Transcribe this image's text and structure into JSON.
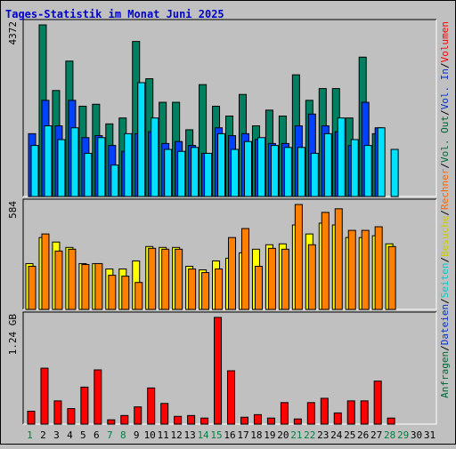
{
  "chart_data": {
    "type": "bar",
    "title": "Tages-Statistik im Monat Juni 2025",
    "categories": [
      "1",
      "2",
      "3",
      "4",
      "5",
      "6",
      "7",
      "8",
      "9",
      "10",
      "11",
      "12",
      "13",
      "14",
      "15",
      "16",
      "17",
      "18",
      "19",
      "20",
      "21",
      "22",
      "23",
      "24",
      "25",
      "26",
      "27",
      "28",
      "29",
      "30",
      "31"
    ],
    "weekend_days": [
      "1",
      "7",
      "8",
      "14",
      "15",
      "21",
      "22",
      "28",
      "29"
    ],
    "right_axis_labels": [
      {
        "text": "Anfragen",
        "color": "#006633"
      },
      {
        "text": "/",
        "color": "#000000"
      },
      {
        "text": "Dateien",
        "color": "#0033cc"
      },
      {
        "text": "/",
        "color": "#000000"
      },
      {
        "text": "Seiten",
        "color": "#00cccc"
      },
      {
        "text": "/",
        "color": "#000000"
      },
      {
        "text": "Besuche",
        "color": "#cccc00"
      },
      {
        "text": "/",
        "color": "#000000"
      },
      {
        "text": "Rechner",
        "color": "#ff6600"
      },
      {
        "text": "/",
        "color": "#000000"
      },
      {
        "text": "Vol. Out",
        "color": "#006633"
      },
      {
        "text": "/",
        "color": "#000000"
      },
      {
        "text": "Vol. In",
        "color": "#0033cc"
      },
      {
        "text": "/",
        "color": "#000000"
      },
      {
        "text": "Volumen",
        "color": "#ff0000"
      }
    ],
    "panels": [
      {
        "name": "hits",
        "ymax_label": "4372",
        "ymax": 4372,
        "series": [
          {
            "name": "Anfragen",
            "color": "#008060",
            "values": [
              null,
              4372,
              2700,
              3450,
              2300,
              2350,
              1850,
              2000,
              3950,
              3000,
              2400,
              2400,
              1700,
              2850,
              2300,
              2050,
              2600,
              1800,
              2200,
              2050,
              3100,
              2450,
              2750,
              2750,
              2000,
              3550,
              1600,
              null,
              null,
              null,
              null
            ]
          },
          {
            "name": "Dateien",
            "color": "#0040ff",
            "values": [
              1600,
              2450,
              1800,
              2450,
              1500,
              1550,
              1300,
              1150,
              1600,
              1650,
              1350,
              1400,
              1300,
              1100,
              1750,
              1550,
              1600,
              1450,
              1350,
              1350,
              1800,
              2100,
              1800,
              1650,
              1300,
              2400,
              1750,
              null,
              null,
              null,
              null
            ]
          },
          {
            "name": "Seiten",
            "color": "#00e0ff",
            "values": [
              1300,
              1800,
              1450,
              1750,
              1100,
              1500,
              800,
              1600,
              2900,
              2000,
              1200,
              1150,
              1250,
              1100,
              1600,
              1200,
              1400,
              1500,
              1300,
              1250,
              1250,
              1100,
              1600,
              2000,
              1450,
              1300,
              1750,
              1200,
              null,
              null,
              null
            ]
          }
        ]
      },
      {
        "name": "visits",
        "ymax_label": "584",
        "ymax": 584,
        "series": [
          {
            "name": "Besuche",
            "color": "#ffff00",
            "values": [
              255,
              400,
              375,
              345,
              255,
              255,
              225,
              225,
              270,
              350,
              345,
              345,
              240,
              220,
              270,
              285,
              315,
              335,
              360,
              365,
              470,
              420,
              480,
              470,
              400,
              400,
              410,
              365,
              null,
              null,
              null
            ]
          },
          {
            "name": "Rechner",
            "color": "#ff8000",
            "values": [
              240,
              420,
              325,
              335,
              250,
              255,
              190,
              185,
              150,
              340,
              335,
              335,
              225,
              205,
              225,
              400,
              450,
              240,
              340,
              335,
              584,
              360,
              540,
              560,
              440,
              440,
              460,
              350,
              null,
              null,
              null
            ]
          }
        ]
      },
      {
        "name": "volume",
        "ymax_label": "1.24 GB",
        "ymax": 1.24,
        "series": [
          {
            "name": "Volumen",
            "color": "#ff0000",
            "values": [
              0.15,
              0.65,
              0.27,
              0.18,
              0.43,
              0.63,
              0.05,
              0.1,
              0.2,
              0.42,
              0.24,
              0.09,
              0.1,
              0.07,
              1.24,
              0.62,
              0.08,
              0.11,
              0.07,
              0.25,
              0.06,
              0.25,
              0.3,
              0.13,
              0.27,
              0.27,
              0.5,
              0.07,
              null,
              null,
              null
            ]
          }
        ]
      }
    ]
  }
}
